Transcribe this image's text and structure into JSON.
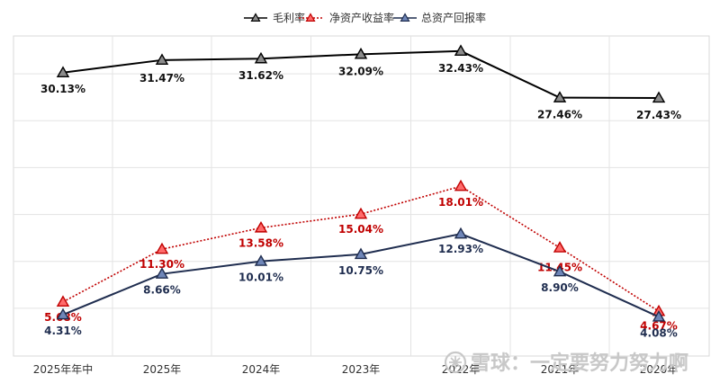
{
  "chart_data": {
    "type": "line",
    "title": "",
    "xlabel": "",
    "ylabel": "",
    "categories": [
      "2025年年中",
      "2025年",
      "2024年",
      "2023年",
      "2022年",
      "2021年",
      "2020年"
    ],
    "ylim": [
      0,
      35
    ],
    "grid": true,
    "legend_position": "top-center",
    "series": [
      {
        "name": "毛利率",
        "color": "#000000",
        "marker_fill": "#8c8c8c",
        "line_style": "solid",
        "values": [
          30.13,
          31.47,
          31.62,
          32.09,
          32.43,
          27.46,
          27.43
        ],
        "labels": [
          "30.13%",
          "31.47%",
          "31.62%",
          "32.09%",
          "32.43%",
          "27.46%",
          "27.43%"
        ]
      },
      {
        "name": "净资产收益率",
        "color": "#c00000",
        "marker_fill": "#ff6b6b",
        "line_style": "dotted",
        "values": [
          5.68,
          11.3,
          13.58,
          15.04,
          18.01,
          11.45,
          4.67
        ],
        "labels": [
          "5.68%",
          "11.30%",
          "13.58%",
          "15.04%",
          "18.01%",
          "11.45%",
          "4.67%"
        ]
      },
      {
        "name": "总资产回报率",
        "color": "#1f2d4f",
        "marker_fill": "#6f86b8",
        "line_style": "solid",
        "values": [
          4.31,
          8.66,
          10.01,
          10.75,
          12.93,
          8.9,
          4.08
        ],
        "labels": [
          "4.31%",
          "8.66%",
          "10.01%",
          "10.75%",
          "12.93%",
          "8.90%",
          "4.08%"
        ]
      }
    ]
  },
  "watermark": "雪球：一定要努力努力啊",
  "watermark_icon": "snowball-logo-icon"
}
